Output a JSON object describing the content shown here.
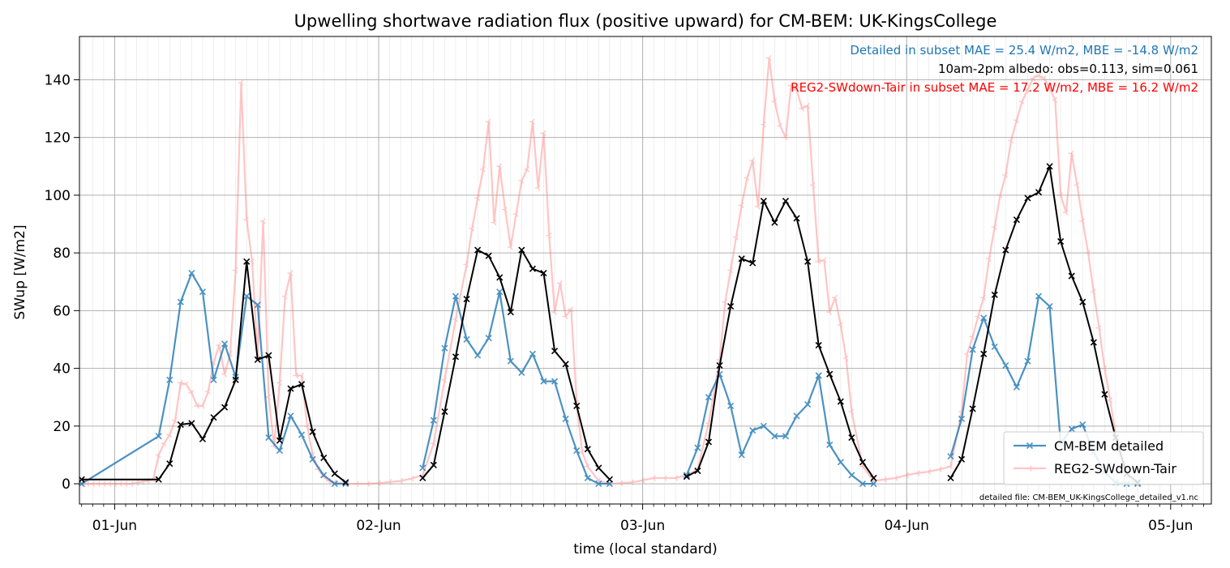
{
  "chart_data": {
    "type": "line",
    "title": "Upwelling shortwave radiation flux (positive upward) for CM-BEM: UK-KingsCollege",
    "xlabel": "time (local standard)",
    "ylabel": "SWup [W/m2]",
    "x_unit": "hours from 01-Jun 00:00",
    "xlim": [
      -3.2,
      99.7
    ],
    "ylim": [
      -7,
      155
    ],
    "x_ticks": [
      {
        "x": 0,
        "label": "01-Jun"
      },
      {
        "x": 24,
        "label": "02-Jun"
      },
      {
        "x": 48,
        "label": "03-Jun"
      },
      {
        "x": 72,
        "label": "04-Jun"
      },
      {
        "x": 96,
        "label": "05-Jun"
      }
    ],
    "y_ticks": [
      0,
      20,
      40,
      60,
      80,
      100,
      120,
      140
    ],
    "grid": true,
    "legend_position": "lower right",
    "annotations": {
      "detailed_stats": "Detailed in subset MAE = 25.4 W/m2, MBE = -14.8 W/m2",
      "albedo": "10am-2pm albedo: obs=0.113, sim=0.061",
      "reg2_stats": "REG2-SWdown-Tair in subset MAE = 17.2 W/m2, MBE = 16.2 W/m2",
      "file_note": "detailed file: CM-BEM_UK-KingsCollege_detailed_v1.nc"
    },
    "series": [
      {
        "name": "CM-BEM detailed",
        "color": "#1f77b4",
        "marker": "x",
        "points": [
          [
            -3,
            0
          ],
          [
            4,
            16.5
          ],
          [
            5,
            36
          ],
          [
            6,
            63
          ],
          [
            7,
            73
          ],
          [
            8,
            66.5
          ],
          [
            9,
            36
          ],
          [
            10,
            48.5
          ],
          [
            11,
            37
          ],
          [
            12,
            65
          ],
          [
            13,
            62
          ],
          [
            14,
            16
          ],
          [
            15,
            11.5
          ],
          [
            16,
            23.5
          ],
          [
            17,
            17
          ],
          [
            18,
            8.5
          ],
          [
            19,
            3
          ],
          [
            20,
            0
          ],
          [
            21,
            0
          ],
          null,
          [
            28,
            5.5
          ],
          [
            29,
            22
          ],
          [
            30,
            47
          ],
          [
            31,
            65
          ],
          [
            32,
            50
          ],
          [
            33,
            44.5
          ],
          [
            34,
            50.5
          ],
          [
            35,
            66.5
          ],
          [
            36,
            42.5
          ],
          [
            37,
            38.5
          ],
          [
            38,
            45
          ],
          [
            39,
            35.5
          ],
          [
            40,
            35.5
          ],
          [
            41,
            22.5
          ],
          [
            42,
            11.5
          ],
          [
            43,
            2
          ],
          [
            44,
            0
          ],
          [
            45,
            0
          ],
          null,
          [
            52,
            3
          ],
          [
            53,
            12.5
          ],
          [
            54,
            30
          ],
          [
            55,
            38
          ],
          [
            56,
            27
          ],
          [
            57,
            10
          ],
          [
            58,
            18.5
          ],
          [
            59,
            20
          ],
          [
            60,
            16.5
          ],
          [
            61,
            16.5
          ],
          [
            62,
            23.5
          ],
          [
            63,
            27.5
          ],
          [
            64,
            37.5
          ],
          [
            65,
            13.5
          ],
          [
            66,
            7.5
          ],
          [
            67,
            3
          ],
          [
            68,
            0
          ],
          [
            69,
            0
          ],
          null,
          [
            76,
            9.5
          ],
          [
            77,
            22.5
          ],
          [
            78,
            46.5
          ],
          [
            79,
            57.5
          ],
          [
            80,
            47.5
          ],
          [
            81,
            41
          ],
          [
            82,
            33.5
          ],
          [
            83,
            42.5
          ],
          [
            84,
            65
          ],
          [
            85,
            61.5
          ],
          [
            86,
            14
          ],
          [
            87,
            19
          ],
          [
            88,
            20.5
          ],
          [
            89,
            11
          ],
          [
            90,
            4
          ],
          [
            91,
            0.5
          ],
          [
            92,
            0
          ],
          [
            93,
            0
          ]
        ]
      },
      {
        "name": "REG2-SWdown-Tair",
        "color": "#ff7f7f",
        "marker": "tri_left",
        "points": [
          [
            -3,
            0
          ],
          [
            -2.5,
            0
          ],
          [
            -2,
            0
          ],
          [
            -1.5,
            0
          ],
          [
            -1,
            0
          ],
          [
            -0.5,
            0
          ],
          [
            0,
            0
          ],
          [
            0.5,
            0
          ],
          [
            1,
            0
          ],
          [
            1.5,
            0
          ],
          [
            2,
            0.3
          ],
          [
            2.5,
            0.7
          ],
          [
            3,
            1
          ],
          [
            3.5,
            1.5
          ],
          [
            4,
            10
          ],
          [
            4.5,
            14
          ],
          [
            5,
            17
          ],
          [
            5.5,
            22
          ],
          [
            6,
            35
          ],
          [
            6.5,
            34.5
          ],
          [
            7,
            31.5
          ],
          [
            7.5,
            27
          ],
          [
            8,
            27
          ],
          [
            8.5,
            32
          ],
          [
            9,
            42
          ],
          [
            9.5,
            48
          ],
          [
            10,
            38
          ],
          [
            10.5,
            45
          ],
          [
            11,
            74
          ],
          [
            11.5,
            139
          ],
          [
            12,
            91.5
          ],
          [
            12.5,
            77
          ],
          [
            13,
            44
          ],
          [
            13.5,
            91
          ],
          [
            14,
            30
          ],
          [
            14.5,
            13
          ],
          [
            15,
            35
          ],
          [
            15.5,
            65
          ],
          [
            16,
            73
          ],
          [
            16.5,
            37.5
          ],
          [
            17,
            37.5
          ],
          [
            17.5,
            20
          ],
          [
            18,
            10
          ],
          [
            18.5,
            5
          ],
          [
            19,
            2.5
          ],
          [
            19.5,
            1
          ],
          [
            20,
            0.5
          ],
          [
            21,
            0
          ],
          [
            22,
            0
          ],
          [
            23,
            0
          ],
          [
            24,
            0.2
          ],
          [
            25,
            0.6
          ],
          [
            26,
            1
          ],
          [
            27,
            1.8
          ],
          [
            28,
            3
          ],
          [
            29,
            14
          ],
          [
            30,
            36
          ],
          [
            31,
            57
          ],
          [
            32,
            76
          ],
          [
            32.5,
            88.5
          ],
          [
            33,
            99
          ],
          [
            33.5,
            109
          ],
          [
            34,
            125.5
          ],
          [
            34.5,
            90.5
          ],
          [
            35,
            110
          ],
          [
            35.5,
            95
          ],
          [
            36,
            82
          ],
          [
            36.5,
            93.5
          ],
          [
            37,
            105
          ],
          [
            37.5,
            109
          ],
          [
            38,
            125.5
          ],
          [
            38.5,
            102.5
          ],
          [
            39,
            121.5
          ],
          [
            39.5,
            86
          ],
          [
            40,
            59.5
          ],
          [
            40.5,
            69.5
          ],
          [
            41,
            58
          ],
          [
            41.5,
            60.5
          ],
          [
            42,
            28
          ],
          [
            42.5,
            11
          ],
          [
            43,
            6
          ],
          [
            44,
            1
          ],
          [
            45,
            0
          ],
          [
            46,
            0.2
          ],
          [
            47,
            0.5
          ],
          [
            48,
            1.2
          ],
          [
            49,
            2
          ],
          [
            50,
            2
          ],
          [
            51,
            2
          ],
          [
            52,
            3
          ],
          [
            53,
            5
          ],
          [
            54,
            21
          ],
          [
            55,
            43
          ],
          [
            55.5,
            63
          ],
          [
            56,
            74
          ],
          [
            56.5,
            85.5
          ],
          [
            57,
            96.5
          ],
          [
            57.5,
            106
          ],
          [
            58,
            112
          ],
          [
            58.5,
            96
          ],
          [
            59,
            124.5
          ],
          [
            59.5,
            147.5
          ],
          [
            60,
            132.5
          ],
          [
            60.5,
            124
          ],
          [
            61,
            120
          ],
          [
            61.5,
            138
          ],
          [
            62,
            136.5
          ],
          [
            62.5,
            130
          ],
          [
            63,
            131
          ],
          [
            63.5,
            103.5
          ],
          [
            64,
            77
          ],
          [
            64.5,
            77.5
          ],
          [
            65,
            59.5
          ],
          [
            65.5,
            64.5
          ],
          [
            66,
            55
          ],
          [
            66.5,
            43.5
          ],
          [
            67,
            25
          ],
          [
            68,
            6
          ],
          [
            69,
            1
          ],
          [
            70,
            1.5
          ],
          [
            71,
            2
          ],
          [
            72,
            3
          ],
          [
            73,
            3.7
          ],
          [
            74,
            4.2
          ],
          [
            75,
            5
          ],
          [
            76,
            6
          ],
          [
            77,
            25
          ],
          [
            77.5,
            45
          ],
          [
            78,
            51
          ],
          [
            78.5,
            58
          ],
          [
            79,
            64.5
          ],
          [
            79.5,
            78
          ],
          [
            80,
            89
          ],
          [
            80.5,
            100
          ],
          [
            81,
            107
          ],
          [
            81.5,
            119
          ],
          [
            82,
            126
          ],
          [
            82.5,
            132.5
          ],
          [
            83,
            136.5
          ],
          [
            83.5,
            140.5
          ],
          [
            84,
            141.5
          ],
          [
            84.5,
            140.5
          ],
          [
            85,
            137
          ],
          [
            85.5,
            133
          ],
          [
            86,
            100
          ],
          [
            86.5,
            94
          ],
          [
            87,
            114.5
          ],
          [
            87.5,
            103.5
          ],
          [
            88,
            91
          ],
          [
            88.5,
            80
          ],
          [
            89,
            66.5
          ],
          [
            89.5,
            54
          ],
          [
            90,
            40
          ],
          [
            90.5,
            29
          ],
          [
            91,
            17
          ],
          [
            91.5,
            10
          ],
          [
            92,
            3
          ],
          [
            92.5,
            1
          ],
          [
            93,
            0.5
          ]
        ]
      },
      {
        "name": "",
        "color": "#000000",
        "marker": "x",
        "points": [
          [
            -3,
            1.5
          ],
          [
            4,
            1.5
          ],
          [
            5,
            7
          ],
          [
            6,
            20.5
          ],
          [
            7,
            21
          ],
          [
            8,
            15.5
          ],
          [
            9,
            23
          ],
          [
            10,
            26.5
          ],
          [
            11,
            36
          ],
          [
            12,
            77
          ],
          [
            13,
            43
          ],
          [
            14,
            44.5
          ],
          [
            15,
            15
          ],
          [
            16,
            33
          ],
          [
            17,
            34.5
          ],
          [
            18,
            18
          ],
          [
            19,
            9
          ],
          [
            20,
            3.5
          ],
          [
            21,
            0.5
          ],
          null,
          [
            28,
            2
          ],
          [
            29,
            6.5
          ],
          [
            30,
            25
          ],
          [
            31,
            44
          ],
          [
            32,
            64
          ],
          [
            33,
            81
          ],
          [
            34,
            79
          ],
          [
            35,
            71.5
          ],
          [
            36,
            59.5
          ],
          [
            37,
            81
          ],
          [
            38,
            74.5
          ],
          [
            39,
            73
          ],
          [
            40,
            46
          ],
          [
            41,
            41.5
          ],
          [
            42,
            27
          ],
          [
            43,
            12
          ],
          [
            44,
            5.5
          ],
          [
            45,
            1.5
          ],
          null,
          [
            52,
            2.5
          ],
          [
            53,
            4.5
          ],
          [
            54,
            14.5
          ],
          [
            55,
            41
          ],
          [
            56,
            61.5
          ],
          [
            57,
            78
          ],
          [
            58,
            76.5
          ],
          [
            59,
            98
          ],
          [
            60,
            90.5
          ],
          [
            61,
            98
          ],
          [
            62,
            92
          ],
          [
            63,
            77
          ],
          [
            64,
            48
          ],
          [
            65,
            38
          ],
          [
            66,
            28.5
          ],
          [
            67,
            16
          ],
          [
            68,
            7.5
          ],
          [
            69,
            2
          ],
          null,
          [
            76,
            2
          ],
          [
            77,
            8.5
          ],
          [
            78,
            26
          ],
          [
            79,
            45
          ],
          [
            80,
            65.5
          ],
          [
            81,
            81
          ],
          [
            82,
            91.5
          ],
          [
            83,
            99
          ],
          [
            84,
            101
          ],
          [
            85,
            110
          ],
          [
            86,
            84
          ],
          [
            87,
            72
          ],
          [
            88,
            63
          ],
          [
            89,
            49
          ],
          [
            90,
            31
          ],
          [
            91,
            16
          ],
          [
            92,
            3.5
          ],
          [
            93,
            0.5
          ]
        ]
      }
    ]
  }
}
